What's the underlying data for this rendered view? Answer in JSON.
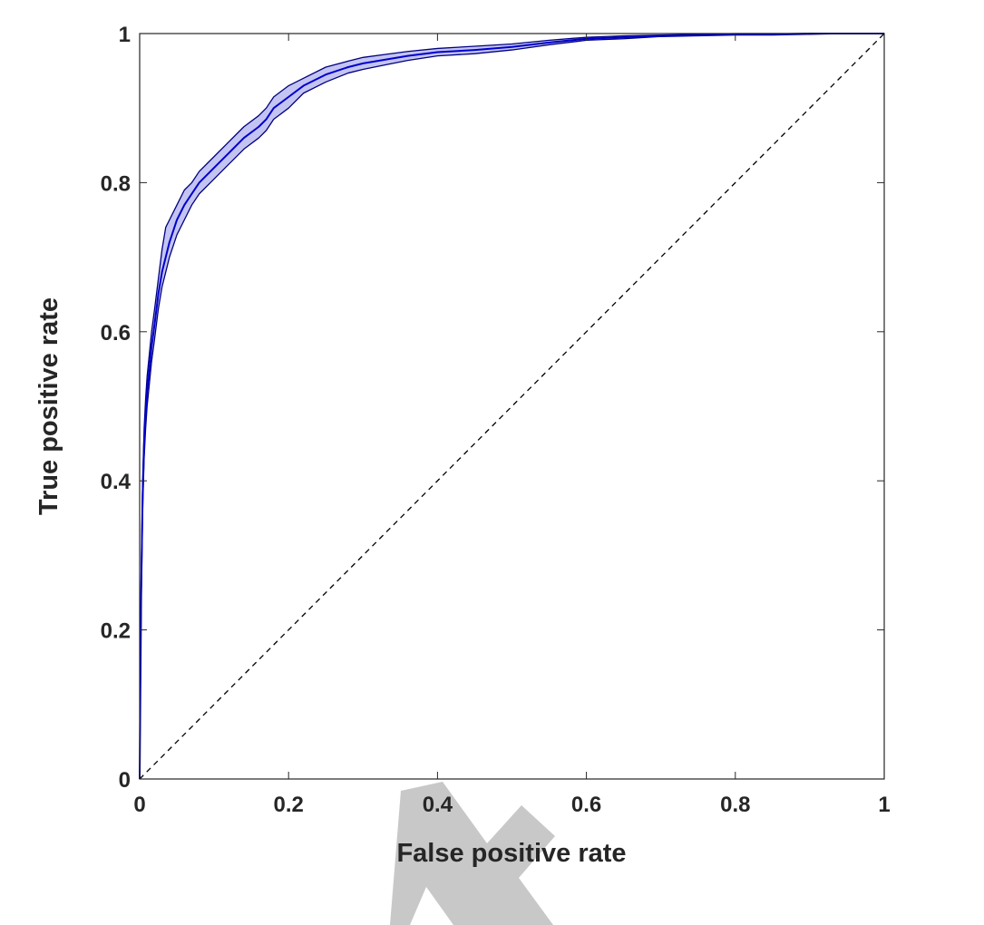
{
  "chart_data": {
    "type": "line",
    "title": "",
    "xlabel": "False positive rate",
    "ylabel": "True positive rate",
    "xlim": [
      0,
      1
    ],
    "ylim": [
      0,
      1
    ],
    "xticks": [
      "0",
      "0.2",
      "0.4",
      "0.6",
      "0.8",
      "1"
    ],
    "yticks": [
      "0",
      "0.2",
      "0.4",
      "0.6",
      "0.8",
      "1"
    ],
    "grid": false,
    "legend": "none",
    "series": [
      {
        "role": "mean_roc_curve",
        "color": "#0000cc",
        "x": [
          0,
          0.002,
          0.004,
          0.006,
          0.008,
          0.01,
          0.013,
          0.016,
          0.02,
          0.025,
          0.03,
          0.035,
          0.04,
          0.05,
          0.06,
          0.07,
          0.08,
          0.1,
          0.12,
          0.14,
          0.16,
          0.17,
          0.18,
          0.2,
          0.22,
          0.25,
          0.28,
          0.3,
          0.33,
          0.36,
          0.4,
          0.45,
          0.5,
          0.55,
          0.6,
          0.65,
          0.7,
          0.75,
          0.8,
          0.85,
          0.9,
          0.95,
          1
        ],
        "y": [
          0,
          0.25,
          0.38,
          0.45,
          0.49,
          0.52,
          0.55,
          0.58,
          0.61,
          0.65,
          0.68,
          0.7,
          0.72,
          0.75,
          0.77,
          0.785,
          0.8,
          0.82,
          0.84,
          0.86,
          0.875,
          0.885,
          0.9,
          0.915,
          0.93,
          0.945,
          0.955,
          0.96,
          0.965,
          0.97,
          0.975,
          0.978,
          0.982,
          0.988,
          0.993,
          0.995,
          0.997,
          0.998,
          0.999,
          0.999,
          1,
          1,
          1
        ]
      },
      {
        "role": "upper_band",
        "color": "#000080",
        "y": [
          0,
          0.27,
          0.4,
          0.47,
          0.51,
          0.54,
          0.57,
          0.6,
          0.63,
          0.67,
          0.71,
          0.74,
          0.75,
          0.77,
          0.79,
          0.8,
          0.815,
          0.835,
          0.855,
          0.875,
          0.89,
          0.9,
          0.915,
          0.93,
          0.94,
          0.955,
          0.963,
          0.968,
          0.972,
          0.976,
          0.98,
          0.983,
          0.986,
          0.991,
          0.995,
          0.997,
          0.998,
          0.999,
          1,
          1,
          1,
          1,
          1
        ]
      },
      {
        "role": "lower_band",
        "color": "#000080",
        "y": [
          0,
          0.23,
          0.36,
          0.43,
          0.47,
          0.5,
          0.53,
          0.56,
          0.59,
          0.63,
          0.66,
          0.68,
          0.7,
          0.73,
          0.75,
          0.77,
          0.785,
          0.805,
          0.825,
          0.845,
          0.86,
          0.87,
          0.885,
          0.9,
          0.92,
          0.935,
          0.947,
          0.952,
          0.958,
          0.964,
          0.97,
          0.973,
          0.978,
          0.985,
          0.991,
          0.993,
          0.996,
          0.997,
          0.998,
          0.998,
          0.999,
          1,
          1
        ]
      },
      {
        "role": "chance_line",
        "style": "dashed",
        "color": "#000000",
        "x": [
          0,
          1
        ],
        "y": [
          0,
          1
        ]
      }
    ]
  }
}
